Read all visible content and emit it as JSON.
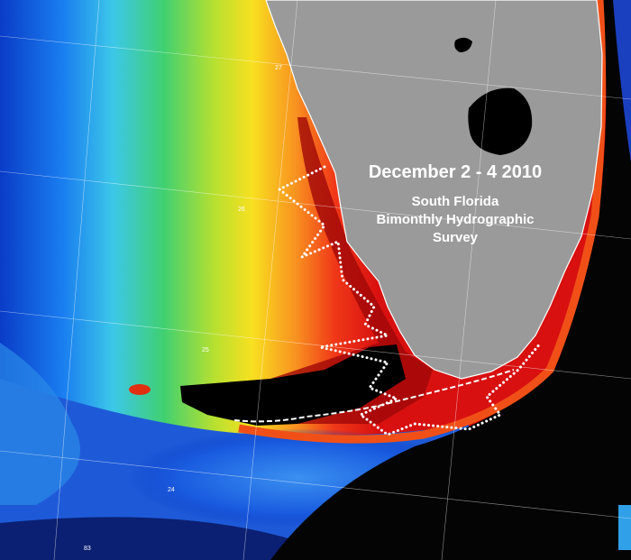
{
  "title": "December 2 - 4 2010",
  "subtitle_lines": [
    "South Florida",
    "Bimonthly Hydrographic",
    "Survey"
  ],
  "grid_labels": [
    "27",
    "26",
    "25",
    "24",
    "83"
  ]
}
